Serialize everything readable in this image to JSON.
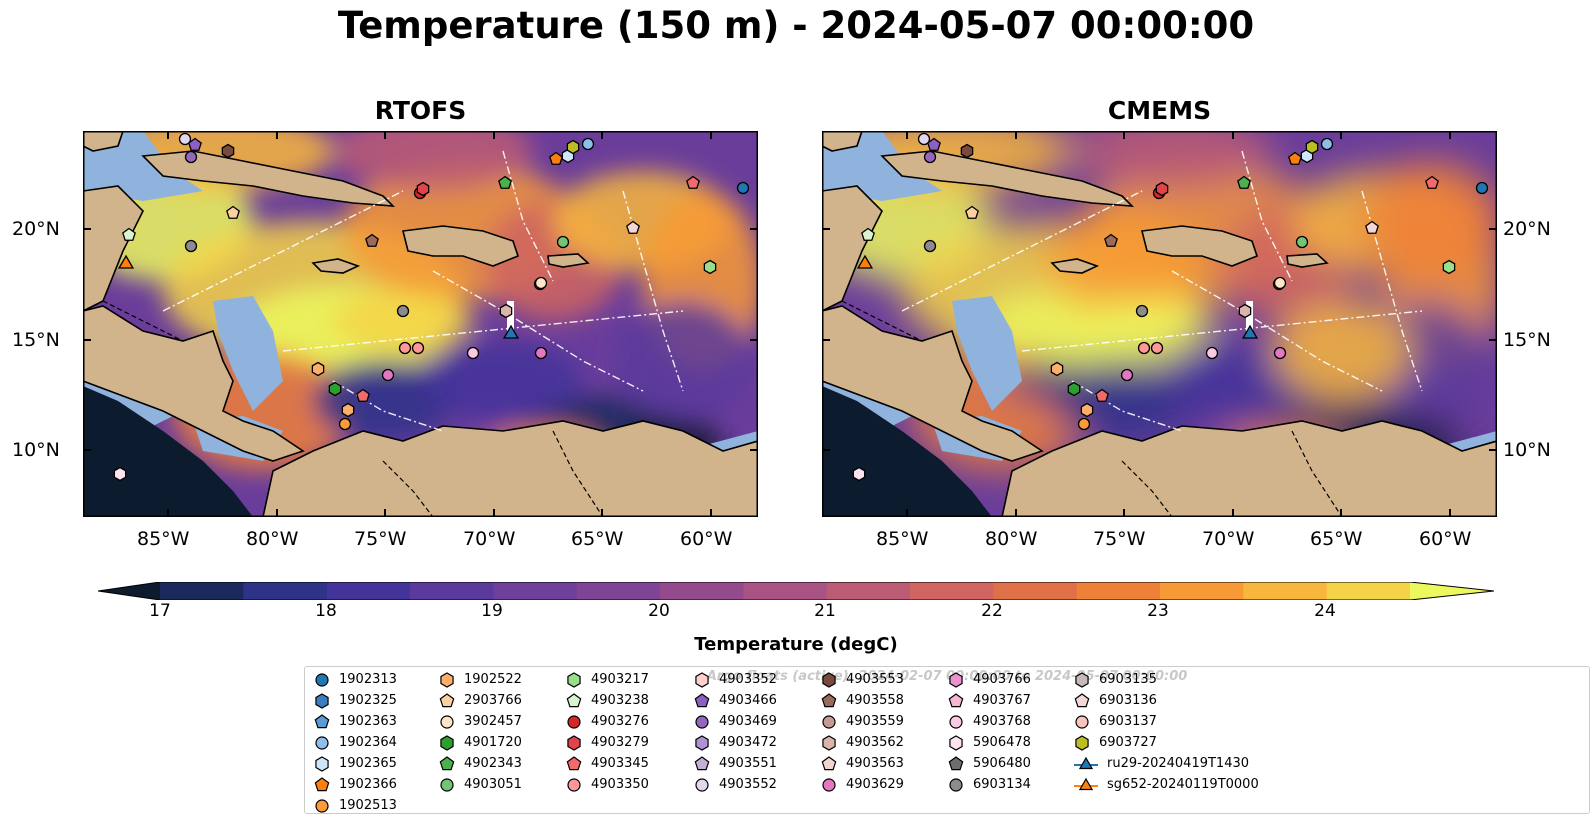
{
  "figure": {
    "title": "Temperature (150 m) - 2024-05-07 00:00:00",
    "panels": [
      {
        "title": "RTOFS"
      },
      {
        "title": "CMEMS"
      }
    ],
    "lon_ticks": [
      "85°W",
      "80°W",
      "75°W",
      "70°W",
      "65°W",
      "60°W"
    ],
    "lat_ticks": [
      "20°N",
      "15°N",
      "10°N"
    ]
  },
  "colorbar": {
    "label": "Temperature (degC)",
    "ticks": [
      "17",
      "18",
      "19",
      "20",
      "21",
      "22",
      "23",
      "24"
    ],
    "colors": [
      "#0d1b2e",
      "#1b2a5c",
      "#2e3388",
      "#43349a",
      "#5a3a9c",
      "#6e3f9b",
      "#804497",
      "#944b8e",
      "#a85383",
      "#bc5c74",
      "#cf6461",
      "#e07048",
      "#ef8038",
      "#f79a35",
      "#f8b73c",
      "#f5d348",
      "#ecf85e"
    ]
  },
  "legend": {
    "title": "Argo floats (active): 2024-02-07 00:00:00 to 2024-05-07 00:00:00",
    "columns": [
      [
        {
          "label": "1902313",
          "shape": "circle",
          "color": "#1f77b4"
        },
        {
          "label": "1902325",
          "shape": "hexagon",
          "color": "#3a7dc0"
        },
        {
          "label": "1902363",
          "shape": "pentagon",
          "color": "#5b9bd5"
        },
        {
          "label": "1902364",
          "shape": "circle",
          "color": "#8fbfe8"
        },
        {
          "label": "1902365",
          "shape": "hexagon",
          "color": "#cfe6fa"
        },
        {
          "label": "1902366",
          "shape": "pentagon",
          "color": "#ff7f0e"
        },
        {
          "label": "1902513",
          "shape": "circle",
          "color": "#fd9b3b"
        }
      ],
      [
        {
          "label": "1902522",
          "shape": "hexagon",
          "color": "#fdae6b"
        },
        {
          "label": "2903766",
          "shape": "pentagon",
          "color": "#fdd0a2"
        },
        {
          "label": "3902457",
          "shape": "circle",
          "color": "#fde5c8"
        },
        {
          "label": "4901720",
          "shape": "hexagon",
          "color": "#2ca02c"
        },
        {
          "label": "4902343",
          "shape": "pentagon",
          "color": "#4cb04c"
        },
        {
          "label": "4903051",
          "shape": "circle",
          "color": "#74c476"
        }
      ],
      [
        {
          "label": "4903217",
          "shape": "hexagon",
          "color": "#98df8a"
        },
        {
          "label": "4903238",
          "shape": "pentagon",
          "color": "#d9f5d0"
        },
        {
          "label": "4903276",
          "shape": "circle",
          "color": "#d62728"
        },
        {
          "label": "4903279",
          "shape": "hexagon",
          "color": "#e0444a"
        },
        {
          "label": "4903345",
          "shape": "pentagon",
          "color": "#f26a6a"
        },
        {
          "label": "4903350",
          "shape": "circle",
          "color": "#ff9896"
        }
      ],
      [
        {
          "label": "4903352",
          "shape": "hexagon",
          "color": "#ffd0cf"
        },
        {
          "label": "4903466",
          "shape": "pentagon",
          "color": "#8c5fc4"
        },
        {
          "label": "4903469",
          "shape": "circle",
          "color": "#9467bd"
        },
        {
          "label": "4903472",
          "shape": "hexagon",
          "color": "#b091d6"
        },
        {
          "label": "4903551",
          "shape": "pentagon",
          "color": "#c5b0d5"
        },
        {
          "label": "4903552",
          "shape": "circle",
          "color": "#e3d6ef"
        }
      ],
      [
        {
          "label": "4903553",
          "shape": "hexagon",
          "color": "#7b4a3e"
        },
        {
          "label": "4903558",
          "shape": "pentagon",
          "color": "#9c6a5c"
        },
        {
          "label": "4903559",
          "shape": "circle",
          "color": "#c49c94"
        },
        {
          "label": "4903562",
          "shape": "hexagon",
          "color": "#dbb5ab"
        },
        {
          "label": "4903563",
          "shape": "pentagon",
          "color": "#f0d6cf"
        },
        {
          "label": "4903629",
          "shape": "circle",
          "color": "#e377c2"
        }
      ],
      [
        {
          "label": "4903766",
          "shape": "hexagon",
          "color": "#ec90cf"
        },
        {
          "label": "4903767",
          "shape": "pentagon",
          "color": "#f7b6d2"
        },
        {
          "label": "4903768",
          "shape": "circle",
          "color": "#fbc9e2"
        },
        {
          "label": "5906478",
          "shape": "hexagon",
          "color": "#fde3f0"
        },
        {
          "label": "5906480",
          "shape": "pentagon",
          "color": "#6e6e6e"
        },
        {
          "label": "6903134",
          "shape": "circle",
          "color": "#8c8c8c"
        }
      ],
      [
        {
          "label": "6903135",
          "shape": "hexagon",
          "color": "#c7b9b9"
        },
        {
          "label": "6903136",
          "shape": "pentagon",
          "color": "#f2d7d5"
        },
        {
          "label": "6903137",
          "shape": "circle",
          "color": "#f7c4be"
        },
        {
          "label": "6903727",
          "shape": "hexagon",
          "color": "#bcbd22"
        },
        {
          "label": "ru29-20240419T1430",
          "shape": "triangle-line",
          "color": "#1f77b4"
        },
        {
          "label": "sg652-20240119T0000",
          "shape": "triangle-line",
          "color": "#ff7f0e"
        }
      ]
    ]
  }
}
